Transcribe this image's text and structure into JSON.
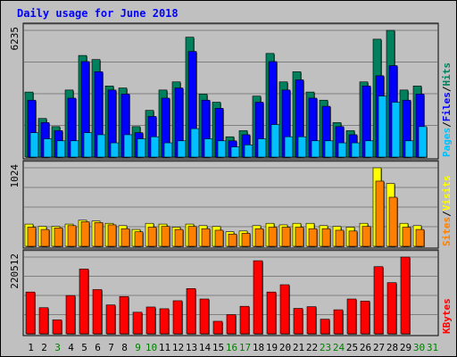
{
  "chart_data": {
    "type": "bar",
    "title": "Daily usage for June 2018",
    "categories": [
      "1",
      "2",
      "3",
      "4",
      "5",
      "6",
      "7",
      "8",
      "9",
      "10",
      "11",
      "12",
      "13",
      "14",
      "15",
      "16",
      "17",
      "18",
      "19",
      "20",
      "21",
      "22",
      "23",
      "24",
      "25",
      "26",
      "27",
      "28",
      "29",
      "30",
      "31"
    ],
    "weekend_days": [
      "3",
      "9",
      "10",
      "16",
      "17",
      "23",
      "24",
      "30",
      "31"
    ],
    "colors": {
      "background": "#c0c0c0",
      "plot_background": "#c0c0c0",
      "title": "#0000ff",
      "day": "#000000",
      "weekend_day": "#008000",
      "hits": "#00805c",
      "files": "#0000ff",
      "pages": "#00c0ff",
      "visits": "#ffff00",
      "sites": "#ff8000",
      "kbytes": "#ff0000"
    },
    "panels": [
      {
        "id": "hits-files-pages",
        "max_label": "6235",
        "ylim": [
          0,
          6235
        ],
        "right_labels": [
          "Pages",
          "Files",
          "Hits"
        ],
        "series": [
          {
            "name": "Hits",
            "values": [
              3200,
              1900,
              1500,
              3300,
              5000,
              4800,
              3500,
              3400,
              1500,
              2300,
              3300,
              3700,
              5900,
              3100,
              2700,
              1000,
              1300,
              3000,
              5100,
              3700,
              4200,
              3200,
              2800,
              1700,
              1300,
              3700,
              5800,
              6235,
              3300,
              3500,
              0
            ]
          },
          {
            "name": "Files",
            "values": [
              2800,
              1700,
              1300,
              2900,
              4700,
              4200,
              3300,
              3100,
              1200,
              2000,
              2900,
              3400,
              5200,
              2800,
              2400,
              800,
              1100,
              2700,
              4700,
              3300,
              3800,
              2900,
              2500,
              1500,
              1100,
              3500,
              4000,
              4500,
              2800,
              3100,
              0
            ]
          },
          {
            "name": "Pages",
            "values": [
              1200,
              900,
              800,
              800,
              1200,
              1100,
              700,
              1100,
              900,
              1000,
              700,
              800,
              1400,
              900,
              800,
              500,
              600,
              900,
              1600,
              1000,
              1000,
              800,
              800,
              700,
              700,
              800,
              3000,
              2700,
              800,
              1500,
              0
            ]
          }
        ]
      },
      {
        "id": "visits-sites",
        "max_label": "1024",
        "ylim": [
          0,
          1024
        ],
        "right_labels": [
          "Sites",
          "Visits"
        ],
        "series": [
          {
            "name": "Visits",
            "values": [
              290,
              260,
              260,
              290,
              340,
              330,
              300,
              270,
              220,
              300,
              290,
              250,
              290,
              270,
              260,
              190,
              200,
              270,
              300,
              280,
              300,
              300,
              270,
              260,
              250,
              300,
              1024,
              820,
              300,
              270,
              0
            ]
          },
          {
            "name": "Sites",
            "values": [
              250,
              220,
              240,
              270,
              320,
              310,
              280,
              230,
              190,
              250,
              260,
              220,
              260,
              230,
              210,
              160,
              170,
              230,
              250,
              250,
              250,
              230,
              230,
              210,
              200,
              260,
              850,
              640,
              250,
              220,
              0
            ]
          }
        ]
      },
      {
        "id": "kbytes",
        "max_label": "220512",
        "ylim": [
          0,
          220512
        ],
        "right_labels": [
          "KBytes"
        ],
        "series": [
          {
            "name": "KBytes",
            "values": [
              120000,
              75000,
              40000,
              110000,
              186000,
              127000,
              83000,
              107000,
              62000,
              77000,
              72000,
              95000,
              130000,
              100000,
              36000,
              55000,
              79000,
              210000,
              120000,
              141000,
              73000,
              78000,
              42000,
              69000,
              100000,
              94000,
              193000,
              147000,
              220512,
              0,
              0
            ]
          }
        ]
      }
    ]
  }
}
